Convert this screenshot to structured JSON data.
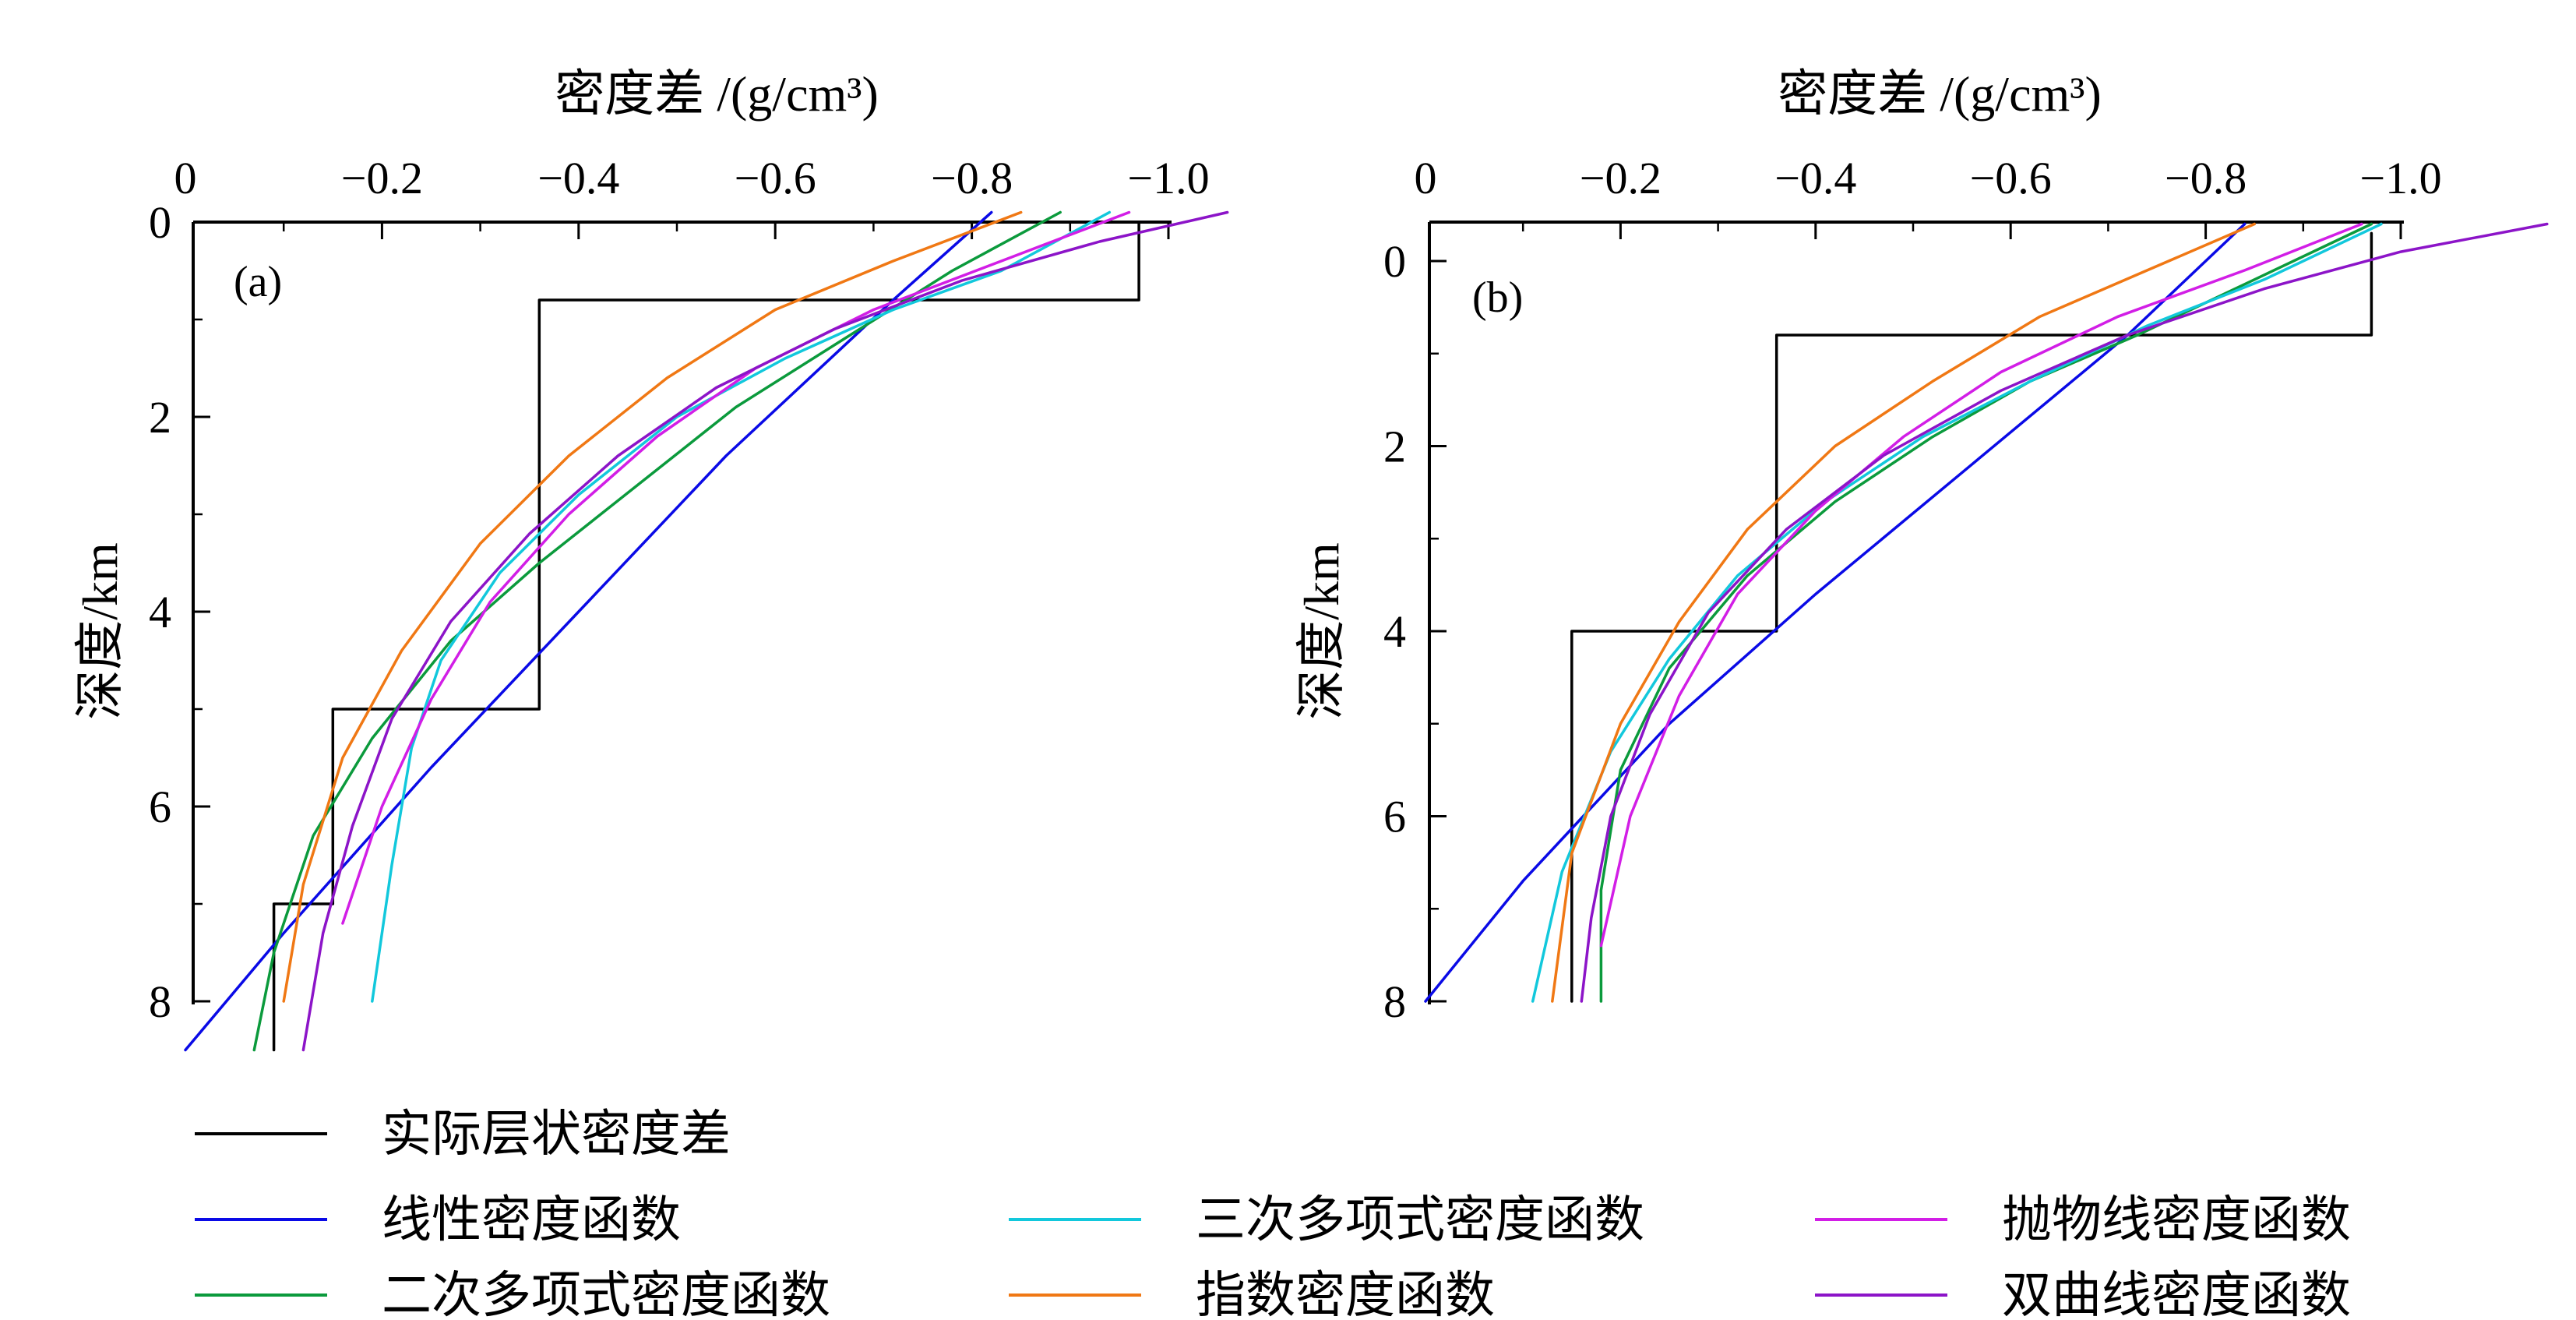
{
  "legend": [
    {
      "label": "实际层状密度差",
      "color": "#000000"
    },
    {
      "label": "线性密度函数",
      "color": "#0a0ae6"
    },
    {
      "label": "二次多项式密度函数",
      "color": "#0b9a3c"
    },
    {
      "label": "三次多项式密度函数",
      "color": "#12c8dc"
    },
    {
      "label": "指数密度函数",
      "color": "#f07814"
    },
    {
      "label": "抛物线密度函数",
      "color": "#d21ee6"
    },
    {
      "label": "双曲线密度函数",
      "color": "#8c14c8"
    }
  ],
  "chart_data": [
    {
      "type": "line",
      "panel_label": "(a)",
      "xlabel": "密度差 /(g/cm³)",
      "ylabel": "深度/km",
      "xlim": [
        0,
        -1.0
      ],
      "ylim": [
        0,
        8
      ],
      "x_ticks": [
        "0",
        "−0.2",
        "−0.4",
        "−0.6",
        "−0.8",
        "−1.0"
      ],
      "y_ticks": [
        "0",
        "2",
        "4",
        "6",
        "8"
      ],
      "series": [
        {
          "name": "实际层状密度差",
          "x": [
            -0.97,
            -0.97,
            -0.36,
            -0.36,
            -0.15,
            -0.15,
            -0.09,
            -0.09
          ],
          "y": [
            0,
            0.8,
            0.8,
            5.0,
            5.0,
            7.0,
            7.0,
            8.5
          ]
        },
        {
          "name": "线性密度函数",
          "x": [
            -0.82,
            -0.72,
            -0.55,
            -0.4,
            -0.25,
            -0.1,
            0.0
          ],
          "y": [
            -0.1,
            0.8,
            2.4,
            4.0,
            5.6,
            7.3,
            8.5
          ]
        },
        {
          "name": "二次多项式密度函数",
          "x": [
            -0.89,
            -0.78,
            -0.67,
            -0.56,
            -0.46,
            -0.36,
            -0.27,
            -0.19,
            -0.13,
            -0.09,
            -0.07
          ],
          "y": [
            -0.1,
            0.5,
            1.2,
            1.9,
            2.7,
            3.5,
            4.3,
            5.3,
            6.3,
            7.5,
            8.5
          ]
        },
        {
          "name": "三次多项式密度函数",
          "x": [
            -0.94,
            -0.83,
            -0.72,
            -0.61,
            -0.5,
            -0.4,
            -0.32,
            -0.26,
            -0.23,
            -0.21,
            -0.19
          ],
          "y": [
            -0.1,
            0.5,
            0.9,
            1.4,
            2.0,
            2.8,
            3.6,
            4.5,
            5.4,
            6.6,
            8.0
          ]
        },
        {
          "name": "指数密度函数",
          "x": [
            -0.85,
            -0.72,
            -0.6,
            -0.49,
            -0.39,
            -0.3,
            -0.22,
            -0.16,
            -0.12,
            -0.1
          ],
          "y": [
            -0.1,
            0.4,
            0.9,
            1.6,
            2.4,
            3.3,
            4.4,
            5.5,
            6.8,
            8.0
          ]
        },
        {
          "name": "抛物线密度函数",
          "x": [
            -0.96,
            -0.83,
            -0.7,
            -0.58,
            -0.48,
            -0.39,
            -0.31,
            -0.25,
            -0.2,
            -0.16
          ],
          "y": [
            -0.1,
            0.4,
            0.9,
            1.5,
            2.2,
            3.0,
            3.9,
            4.9,
            6.0,
            7.2
          ]
        },
        {
          "name": "双曲线密度函数",
          "x": [
            -1.06,
            -0.93,
            -0.79,
            -0.66,
            -0.54,
            -0.44,
            -0.35,
            -0.27,
            -0.21,
            -0.17,
            -0.14,
            -0.12
          ],
          "y": [
            -0.1,
            0.2,
            0.6,
            1.1,
            1.7,
            2.4,
            3.2,
            4.1,
            5.1,
            6.2,
            7.3,
            8.5
          ]
        }
      ]
    },
    {
      "type": "line",
      "panel_label": "(b)",
      "xlabel": "密度差 /(g/cm³)",
      "ylabel": "深度/km",
      "xlim": [
        0,
        -1.0
      ],
      "ylim": [
        0,
        8
      ],
      "x_ticks": [
        "0",
        "−0.2",
        "−0.4",
        "−0.6",
        "−0.8",
        "−1.0"
      ],
      "y_ticks": [
        "0",
        "2",
        "4",
        "6",
        "8"
      ],
      "series": [
        {
          "name": "实际层状密度差",
          "x": [
            -0.97,
            -0.97,
            -0.36,
            -0.36,
            -0.15,
            -0.15
          ],
          "y": [
            -0.3,
            0.8,
            0.8,
            4.0,
            4.0,
            8.0
          ]
        },
        {
          "name": "线性密度函数",
          "x": [
            -0.84,
            -0.72,
            -0.56,
            -0.4,
            -0.25,
            -0.1,
            0.0
          ],
          "y": [
            -0.4,
            0.8,
            2.2,
            3.6,
            5.0,
            6.7,
            8.0
          ]
        },
        {
          "name": "二次多项式密度函数",
          "x": [
            -0.97,
            -0.85,
            -0.73,
            -0.62,
            -0.52,
            -0.42,
            -0.33,
            -0.25,
            -0.2,
            -0.18,
            -0.18
          ],
          "y": [
            -0.4,
            0.2,
            0.8,
            1.3,
            1.9,
            2.6,
            3.4,
            4.4,
            5.5,
            6.8,
            8.0
          ]
        },
        {
          "name": "三次多项式密度函数",
          "x": [
            -0.98,
            -0.86,
            -0.74,
            -0.62,
            -0.51,
            -0.41,
            -0.32,
            -0.25,
            -0.19,
            -0.14,
            -0.11
          ],
          "y": [
            -0.4,
            0.2,
            0.7,
            1.3,
            1.9,
            2.6,
            3.4,
            4.3,
            5.3,
            6.6,
            8.0
          ]
        },
        {
          "name": "指数密度函数",
          "x": [
            -0.85,
            -0.74,
            -0.63,
            -0.52,
            -0.42,
            -0.33,
            -0.26,
            -0.2,
            -0.15,
            -0.13
          ],
          "y": [
            -0.4,
            0.1,
            0.6,
            1.3,
            2.0,
            2.9,
            3.9,
            5.0,
            6.4,
            8.0
          ]
        },
        {
          "name": "抛物线密度函数",
          "x": [
            -0.96,
            -0.84,
            -0.71,
            -0.59,
            -0.49,
            -0.4,
            -0.32,
            -0.26,
            -0.21,
            -0.18
          ],
          "y": [
            -0.4,
            0.1,
            0.6,
            1.2,
            1.9,
            2.7,
            3.6,
            4.7,
            6.0,
            7.4
          ]
        },
        {
          "name": "双曲线密度函数",
          "x": [
            -1.15,
            -1.0,
            -0.86,
            -0.72,
            -0.59,
            -0.47,
            -0.37,
            -0.29,
            -0.23,
            -0.19,
            -0.17,
            -0.16
          ],
          "y": [
            -0.4,
            -0.1,
            0.3,
            0.8,
            1.4,
            2.1,
            2.9,
            3.8,
            4.9,
            6.0,
            7.1,
            8.0
          ]
        }
      ]
    }
  ]
}
